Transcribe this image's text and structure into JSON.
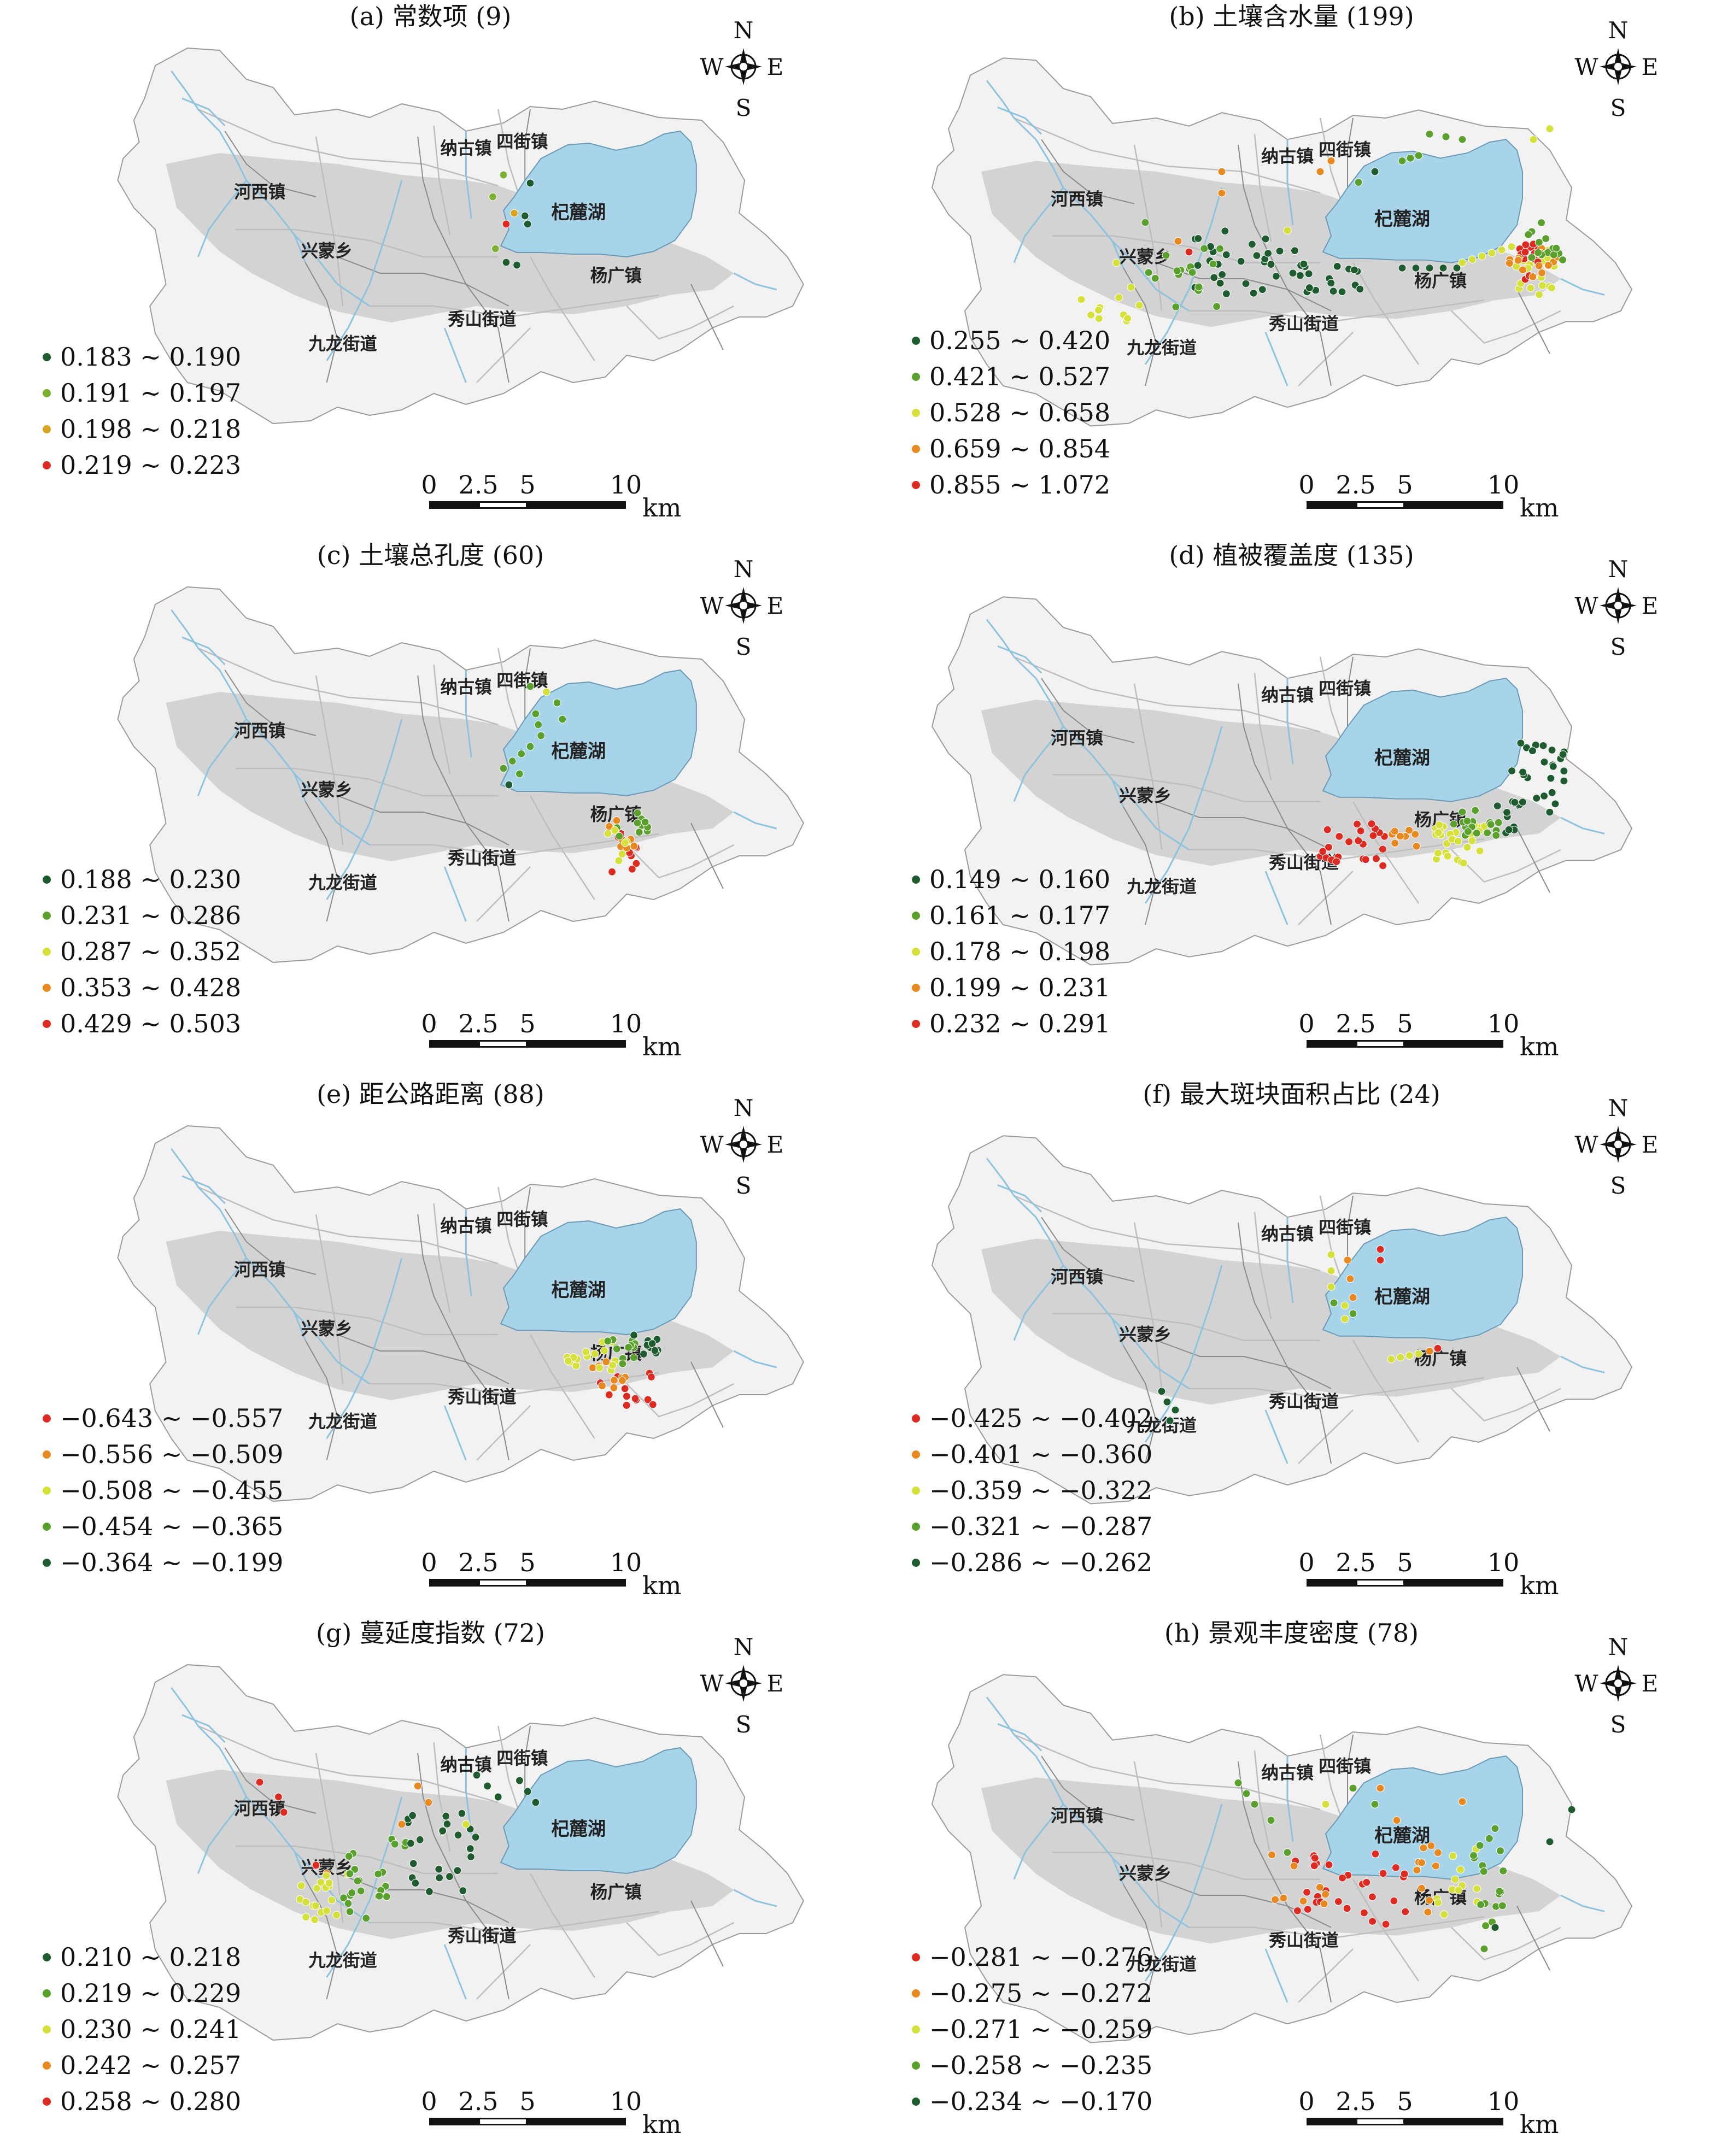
{
  "colors": {
    "dark_green": "#1e5c30",
    "green": "#5aa02c",
    "yellow": "#d6e03a",
    "orange": "#e8891f",
    "red": "#dd2b22",
    "gold": "#d9a520",
    "lake": "#a8d4ea",
    "urban_gray": "#cfcfcf",
    "basin_fill": "#f2f2f2",
    "river": "#8ec3de"
  },
  "compass": {
    "n": "N",
    "s": "S",
    "e": "E",
    "w": "W"
  },
  "scale": {
    "t0": "0",
    "t1": "2.5",
    "t2": "5",
    "t3": "10",
    "unit": "km"
  },
  "labels": {
    "naguzhen": "纳古镇",
    "sijiezhen": "四街镇",
    "hexizhen": "河西镇",
    "xingmengxiang": "兴蒙乡",
    "jiulongjiedao": "九龙街道",
    "xiushanjiedao": "秀山街道",
    "yangguangzhen": "杨广镇",
    "qiluhu": "杞麓湖"
  },
  "panels": [
    {
      "title": "(a) 常数项 (9)",
      "legend": [
        {
          "text": "0.183 ~ 0.190",
          "color": "#1e5c30"
        },
        {
          "text": "0.191 ~ 0.197",
          "color": "#7cb030"
        },
        {
          "text": "0.198 ~ 0.218",
          "color": "#d9a520"
        },
        {
          "text": "0.219 ~ 0.223",
          "color": "#dd2b22"
        }
      ]
    },
    {
      "title": "(b) 土壤含水量 (199)",
      "legend": [
        {
          "text": "0.255 ~ 0.420",
          "color": "#1e5c30"
        },
        {
          "text": "0.421 ~ 0.527",
          "color": "#5aa02c"
        },
        {
          "text": "0.528 ~ 0.658",
          "color": "#d6e03a"
        },
        {
          "text": "0.659 ~ 0.854",
          "color": "#e8891f"
        },
        {
          "text": "0.855 ~ 1.072",
          "color": "#dd2b22"
        }
      ]
    },
    {
      "title": "(c) 土壤总孔度 (60)",
      "legend": [
        {
          "text": "0.188 ~ 0.230",
          "color": "#1e5c30"
        },
        {
          "text": "0.231 ~ 0.286",
          "color": "#5aa02c"
        },
        {
          "text": "0.287 ~ 0.352",
          "color": "#d6e03a"
        },
        {
          "text": "0.353 ~ 0.428",
          "color": "#e8891f"
        },
        {
          "text": "0.429 ~ 0.503",
          "color": "#dd2b22"
        }
      ]
    },
    {
      "title": "(d) 植被覆盖度 (135)",
      "legend": [
        {
          "text": "0.149 ~ 0.160",
          "color": "#1e5c30"
        },
        {
          "text": "0.161 ~ 0.177",
          "color": "#5aa02c"
        },
        {
          "text": "0.178 ~ 0.198",
          "color": "#d6e03a"
        },
        {
          "text": "0.199 ~ 0.231",
          "color": "#e8891f"
        },
        {
          "text": "0.232 ~ 0.291",
          "color": "#dd2b22"
        }
      ]
    },
    {
      "title": "(e) 距公路距离 (88)",
      "legend": [
        {
          "text": "−0.643 ~ −0.557",
          "color": "#dd2b22"
        },
        {
          "text": "−0.556 ~ −0.509",
          "color": "#e8891f"
        },
        {
          "text": "−0.508 ~ −0.455",
          "color": "#d6e03a"
        },
        {
          "text": "−0.454 ~ −0.365",
          "color": "#5aa02c"
        },
        {
          "text": "−0.364 ~ −0.199",
          "color": "#1e5c30"
        }
      ]
    },
    {
      "title": "(f) 最大斑块面积占比 (24)",
      "legend": [
        {
          "text": "−0.425 ~ −0.402",
          "color": "#dd2b22"
        },
        {
          "text": "−0.401 ~ −0.360",
          "color": "#e8891f"
        },
        {
          "text": "−0.359 ~ −0.322",
          "color": "#d6e03a"
        },
        {
          "text": "−0.321 ~ −0.287",
          "color": "#5aa02c"
        },
        {
          "text": "−0.286 ~ −0.262",
          "color": "#1e5c30"
        }
      ]
    },
    {
      "title": "(g) 蔓延度指数 (72)",
      "legend": [
        {
          "text": "0.210 ~ 0.218",
          "color": "#1e5c30"
        },
        {
          "text": "0.219 ~ 0.229",
          "color": "#5aa02c"
        },
        {
          "text": "0.230 ~ 0.241",
          "color": "#d6e03a"
        },
        {
          "text": "0.242 ~ 0.257",
          "color": "#e8891f"
        },
        {
          "text": "0.258 ~ 0.280",
          "color": "#dd2b22"
        }
      ]
    },
    {
      "title": "(h) 景观丰度密度 (78)",
      "legend": [
        {
          "text": "−0.281 ~ −0.276",
          "color": "#dd2b22"
        },
        {
          "text": "−0.275 ~ −0.272",
          "color": "#e8891f"
        },
        {
          "text": "−0.271 ~ −0.259",
          "color": "#d6e03a"
        },
        {
          "text": "−0.258 ~ −0.235",
          "color": "#5aa02c"
        },
        {
          "text": "−0.234 ~ −0.170",
          "color": "#1e5c30"
        }
      ]
    }
  ]
}
